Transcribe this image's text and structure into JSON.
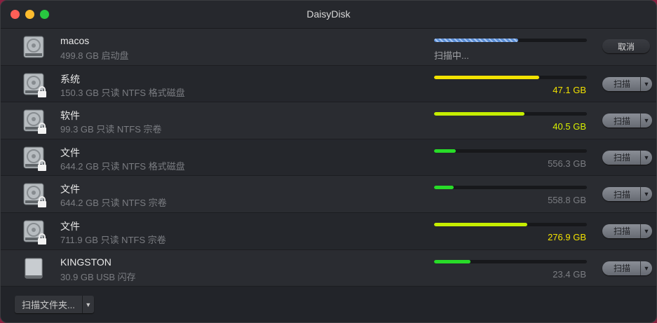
{
  "window": {
    "title": "DaisyDisk"
  },
  "colors": {
    "yellow": "#f2e200",
    "lime": "#c6ee00",
    "green": "#28dc28",
    "scan": "#6a9ee0"
  },
  "disks": [
    {
      "name": "macos",
      "info": "499.8 GB 启动盘",
      "status": "扫描中...",
      "used_fraction": 0.55,
      "scanning": true,
      "button": "取消",
      "locked": false,
      "type": "hdd"
    },
    {
      "name": "系统",
      "info": "150.3 GB 只读 NTFS 格式磁盘",
      "free": "47.1 GB",
      "used_fraction": 0.69,
      "free_color": "#f2e200",
      "bar_color": "#f2e200",
      "button": "扫描",
      "locked": true,
      "type": "hdd"
    },
    {
      "name": "软件",
      "info": "99.3 GB 只读 NTFS 宗卷",
      "free": "40.5 GB",
      "used_fraction": 0.59,
      "free_color": "#d8f000",
      "bar_color": "#c6ee00",
      "button": "扫描",
      "locked": true,
      "type": "hdd"
    },
    {
      "name": "文件",
      "info": "644.2 GB 只读 NTFS 格式磁盘",
      "free": "556.3 GB",
      "used_fraction": 0.14,
      "free_color": "#7b7d82",
      "bar_color": "#28dc28",
      "button": "扫描",
      "locked": true,
      "type": "hdd"
    },
    {
      "name": "文件",
      "info": "644.2 GB 只读 NTFS 宗卷",
      "free": "558.8 GB",
      "used_fraction": 0.13,
      "free_color": "#7b7d82",
      "bar_color": "#28dc28",
      "button": "扫描",
      "locked": true,
      "type": "hdd"
    },
    {
      "name": "文件",
      "info": "711.9 GB 只读 NTFS 宗卷",
      "free": "276.9 GB",
      "used_fraction": 0.61,
      "free_color": "#f2e200",
      "bar_color": "#c6ee00",
      "button": "扫描",
      "locked": true,
      "type": "hdd"
    },
    {
      "name": "KINGSTON",
      "info": "30.9 GB USB 闪存",
      "free": "23.4 GB",
      "used_fraction": 0.24,
      "free_color": "#7b7d82",
      "bar_color": "#28dc28",
      "button": "扫描",
      "locked": false,
      "type": "usb"
    }
  ],
  "footer": {
    "scan_folder": "扫描文件夹..."
  }
}
